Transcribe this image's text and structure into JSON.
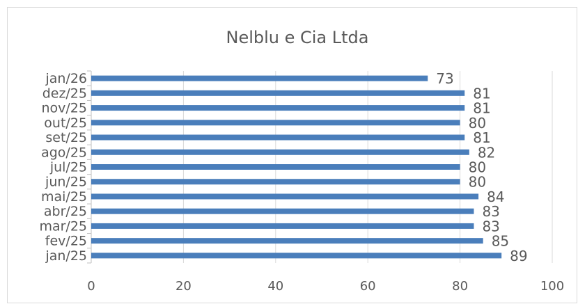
{
  "chart_data": {
    "type": "bar",
    "orientation": "horizontal",
    "title": "Nelblu e Cia Ltda",
    "categories": [
      "jan/25",
      "fev/25",
      "mar/25",
      "abr/25",
      "mai/25",
      "jun/25",
      "jul/25",
      "ago/25",
      "set/25",
      "out/25",
      "nov/25",
      "dez/25",
      "jan/26"
    ],
    "values": [
      89,
      85,
      83,
      83,
      84,
      80,
      80,
      82,
      81,
      80,
      81,
      81,
      73
    ],
    "color": "#4a7ebb",
    "xlim": [
      0,
      100
    ],
    "xticks": [
      0,
      20,
      40,
      60,
      80,
      100
    ],
    "grid": true
  }
}
